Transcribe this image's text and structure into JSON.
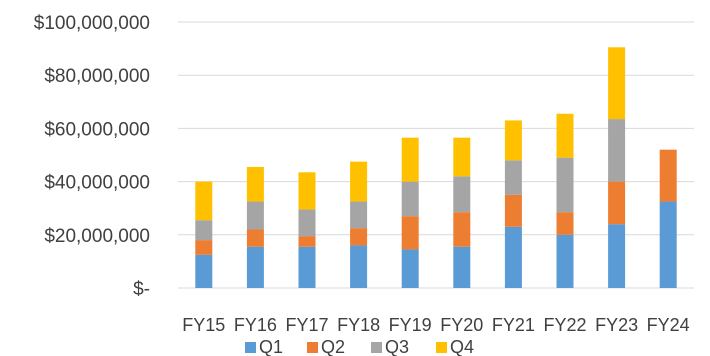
{
  "chart_data": {
    "type": "bar",
    "stacked": true,
    "categories": [
      "FY15",
      "FY16",
      "FY17",
      "FY18",
      "FY19",
      "FY20",
      "FY21",
      "FY22",
      "FY23",
      "FY24"
    ],
    "series": [
      {
        "name": "Q1",
        "color": "#5B9BD5",
        "values": [
          12500000,
          15500000,
          15500000,
          16000000,
          14500000,
          15500000,
          23000000,
          20000000,
          24000000,
          32500000
        ]
      },
      {
        "name": "Q2",
        "color": "#ED7D31",
        "values": [
          5500000,
          6500000,
          4000000,
          6500000,
          12500000,
          13000000,
          12000000,
          8500000,
          16000000,
          19500000
        ]
      },
      {
        "name": "Q3",
        "color": "#A5A5A5",
        "values": [
          7500000,
          10500000,
          10000000,
          10000000,
          13000000,
          13500000,
          13000000,
          20500000,
          23500000,
          0
        ]
      },
      {
        "name": "Q4",
        "color": "#FFC000",
        "values": [
          14500000,
          13000000,
          14000000,
          15000000,
          16500000,
          14500000,
          15000000,
          16500000,
          27000000,
          0
        ]
      }
    ],
    "ylim": [
      0,
      100000000
    ],
    "yticks": [
      0,
      20000000,
      40000000,
      60000000,
      80000000,
      100000000
    ],
    "ytick_labels": [
      "$-",
      "$20,000,000",
      "$40,000,000",
      "$60,000,000",
      "$80,000,000",
      "$100,000,000"
    ],
    "grid": true,
    "legend_position": "bottom"
  }
}
